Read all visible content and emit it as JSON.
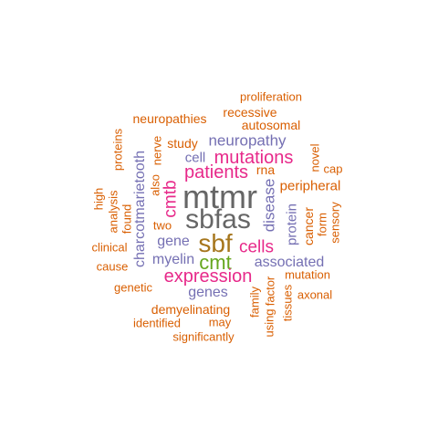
{
  "colors": {
    "orange": "#d95f02",
    "purple": "#7570b3",
    "magenta": "#e7298a",
    "green": "#66a61e",
    "olive": "#a6761d",
    "gray": "#666666"
  },
  "words": [
    {
      "text": "mtmr",
      "color": "#666666"
    },
    {
      "text": "sbfas",
      "color": "#666666"
    },
    {
      "text": "sbf",
      "color": "#a6761d"
    },
    {
      "text": "cmt",
      "color": "#66a61e"
    },
    {
      "text": "mutations",
      "color": "#e7298a"
    },
    {
      "text": "patients",
      "color": "#e7298a"
    },
    {
      "text": "expression",
      "color": "#e7298a"
    },
    {
      "text": "cells",
      "color": "#e7298a"
    },
    {
      "text": "cmtb",
      "color": "#e7298a"
    },
    {
      "text": "neuropathy",
      "color": "#7570b3"
    },
    {
      "text": "disease",
      "color": "#7570b3"
    },
    {
      "text": "gene",
      "color": "#7570b3"
    },
    {
      "text": "myelin",
      "color": "#7570b3"
    },
    {
      "text": "genes",
      "color": "#7570b3"
    },
    {
      "text": "associated",
      "color": "#7570b3"
    },
    {
      "text": "charcotmarietooth",
      "color": "#7570b3"
    },
    {
      "text": "cell",
      "color": "#7570b3"
    },
    {
      "text": "protein",
      "color": "#7570b3"
    },
    {
      "text": "proliferation",
      "color": "#d95f02"
    },
    {
      "text": "recessive",
      "color": "#d95f02"
    },
    {
      "text": "autosomal",
      "color": "#d95f02"
    },
    {
      "text": "neuropathies",
      "color": "#d95f02"
    },
    {
      "text": "study",
      "color": "#d95f02"
    },
    {
      "text": "proteins",
      "color": "#d95f02"
    },
    {
      "text": "nerve",
      "color": "#d95f02"
    },
    {
      "text": "also",
      "color": "#d95f02"
    },
    {
      "text": "rna",
      "color": "#d95f02"
    },
    {
      "text": "novel",
      "color": "#d95f02"
    },
    {
      "text": "cap",
      "color": "#d95f02"
    },
    {
      "text": "peripheral",
      "color": "#d95f02"
    },
    {
      "text": "high",
      "color": "#d95f02"
    },
    {
      "text": "analysis",
      "color": "#d95f02"
    },
    {
      "text": "found",
      "color": "#d95f02"
    },
    {
      "text": "two",
      "color": "#d95f02"
    },
    {
      "text": "cancer",
      "color": "#d95f02"
    },
    {
      "text": "form",
      "color": "#d95f02"
    },
    {
      "text": "sensory",
      "color": "#d95f02"
    },
    {
      "text": "clinical",
      "color": "#d95f02"
    },
    {
      "text": "cause",
      "color": "#d95f02"
    },
    {
      "text": "mutation",
      "color": "#d95f02"
    },
    {
      "text": "genetic",
      "color": "#d95f02"
    },
    {
      "text": "axonal",
      "color": "#d95f02"
    },
    {
      "text": "demyelinating",
      "color": "#d95f02"
    },
    {
      "text": "family",
      "color": "#d95f02"
    },
    {
      "text": "using",
      "color": "#d95f02"
    },
    {
      "text": "factor",
      "color": "#d95f02"
    },
    {
      "text": "tissues",
      "color": "#d95f02"
    },
    {
      "text": "identified",
      "color": "#d95f02"
    },
    {
      "text": "may",
      "color": "#d95f02"
    },
    {
      "text": "significantly",
      "color": "#d95f02"
    }
  ]
}
